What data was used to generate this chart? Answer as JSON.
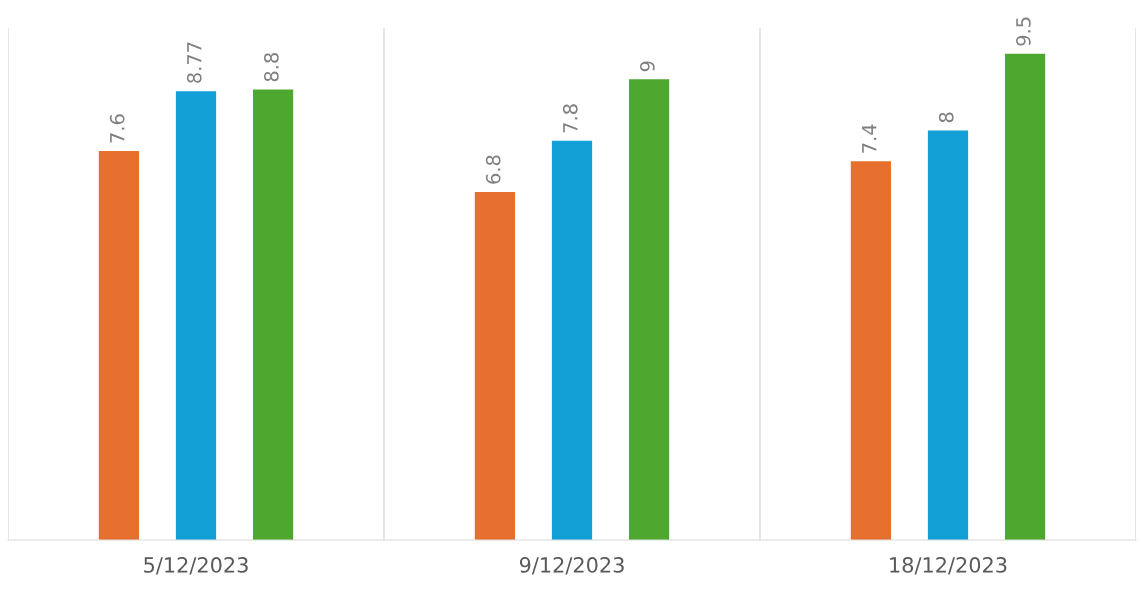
{
  "chart_data": {
    "type": "bar",
    "categories": [
      "5/12/2023",
      "9/12/2023",
      "18/12/2023"
    ],
    "series": [
      {
        "color": "#e8702f",
        "values": [
          7.6,
          6.8,
          7.4
        ]
      },
      {
        "color": "#119fd6",
        "values": [
          8.77,
          7.8,
          8
        ]
      },
      {
        "color": "#4ea72e",
        "values": [
          8.8,
          9,
          9.5
        ]
      }
    ],
    "data_labels": true,
    "grid": "x"
  }
}
